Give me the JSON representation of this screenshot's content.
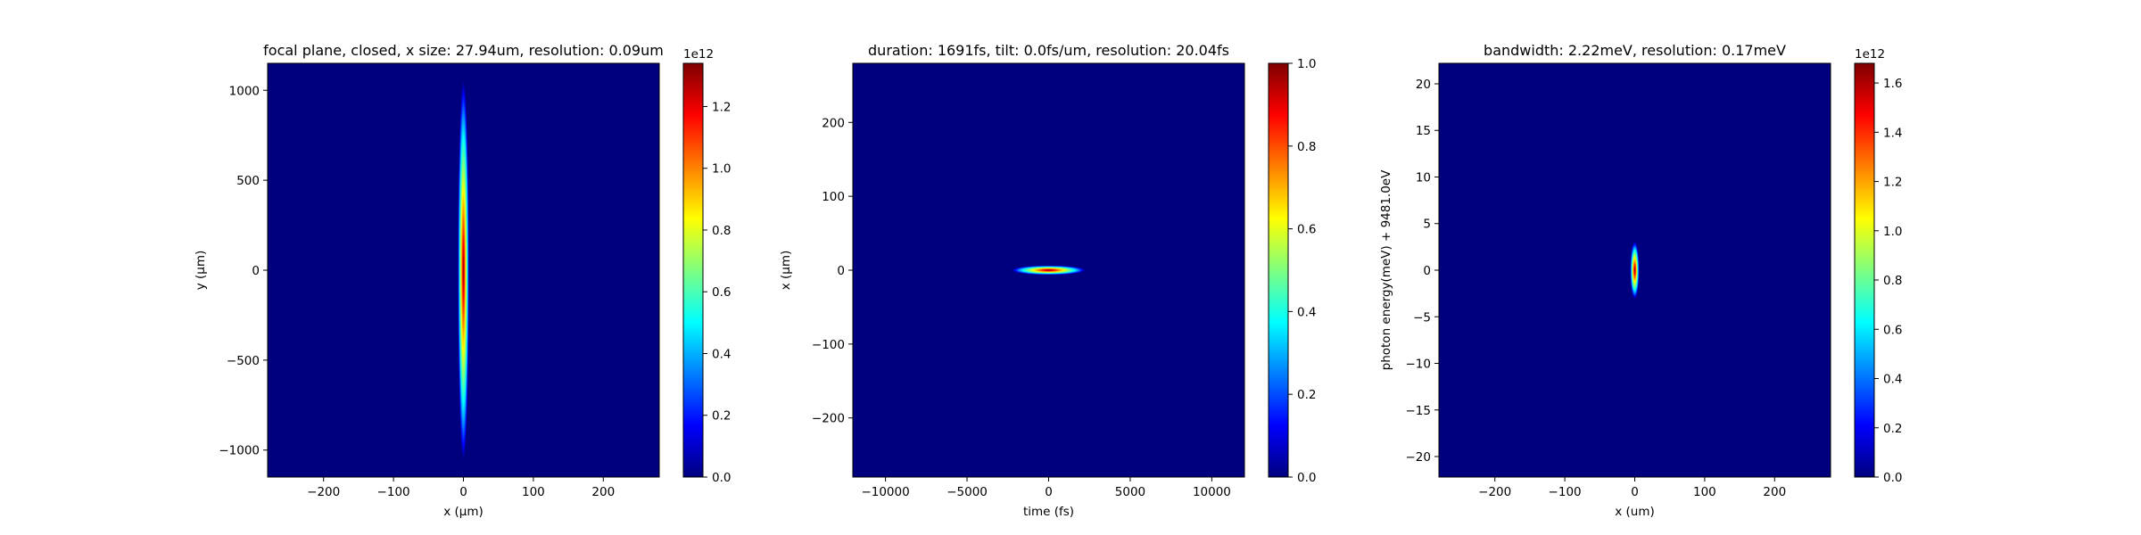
{
  "colormap": "jet",
  "colors": {
    "jet_stops": [
      "#00007f",
      "#0000ff",
      "#007fff",
      "#00ffff",
      "#7fff7f",
      "#ffff00",
      "#ff7f00",
      "#ff0000",
      "#7f0000"
    ],
    "background": "#00007f",
    "axes": "#000000"
  },
  "chart_data": [
    {
      "type": "heatmap",
      "title": "focal plane, closed, x size: 27.94um, resolution: 0.09um",
      "xlabel": "x (μm)",
      "ylabel": "y (μm)",
      "xlim": [
        -280,
        280
      ],
      "ylim": [
        -1150,
        1150
      ],
      "xticks": [
        -200,
        -100,
        0,
        100,
        200
      ],
      "yticks": [
        -1000,
        -500,
        0,
        500,
        1000
      ],
      "xtick_labels": [
        "−200",
        "−100",
        "0",
        "100",
        "200"
      ],
      "ytick_labels": [
        "−1000",
        "−500",
        "0",
        "500",
        "1000"
      ],
      "feature": {
        "shape": "gaussian",
        "center": [
          0,
          0
        ],
        "sigma": [
          2.5,
          330
        ],
        "peak": 1.0
      },
      "colorbar": {
        "vmin": 0,
        "vmax": 1.34,
        "ticks": [
          0.0,
          0.2,
          0.4,
          0.6,
          0.8,
          1.0,
          1.2
        ],
        "tick_labels": [
          "0.0",
          "0.2",
          "0.4",
          "0.6",
          "0.8",
          "1.0",
          "1.2"
        ],
        "offset_label": "1e12"
      }
    },
    {
      "type": "heatmap",
      "title": "duration: 1691fs, tilt: 0.0fs/um, resolution: 20.04fs",
      "xlabel": "time (fs)",
      "ylabel": "x (μm)",
      "xlim": [
        -12000,
        12000
      ],
      "ylim": [
        -280,
        280
      ],
      "xticks": [
        -10000,
        -5000,
        0,
        5000,
        10000
      ],
      "yticks": [
        -200,
        -100,
        0,
        100,
        200
      ],
      "xtick_labels": [
        "−10000",
        "−5000",
        "0",
        "5000",
        "10000"
      ],
      "ytick_labels": [
        "−200",
        "−100",
        "0",
        "100",
        "200"
      ],
      "feature": {
        "shape": "gaussian",
        "center": [
          0,
          0
        ],
        "sigma": [
          700,
          2
        ],
        "peak": 1.0
      },
      "colorbar": {
        "vmin": 0,
        "vmax": 1.0,
        "ticks": [
          0.0,
          0.2,
          0.4,
          0.6,
          0.8,
          1.0
        ],
        "tick_labels": [
          "0.0",
          "0.2",
          "0.4",
          "0.6",
          "0.8",
          "1.0"
        ],
        "offset_label": ""
      }
    },
    {
      "type": "heatmap",
      "title": "bandwidth: 2.22meV, resolution: 0.17meV",
      "xlabel": "x (um)",
      "ylabel": "photon energy(meV) + 9481.0eV",
      "xlim": [
        -280,
        280
      ],
      "ylim": [
        -22.2,
        22.2
      ],
      "xticks": [
        -200,
        -100,
        0,
        100,
        200
      ],
      "yticks": [
        -20,
        -15,
        -10,
        -5,
        0,
        5,
        10,
        15,
        20
      ],
      "xtick_labels": [
        "−200",
        "−100",
        "0",
        "100",
        "200"
      ],
      "ytick_labels": [
        "−20",
        "−15",
        "−10",
        "−5",
        "0",
        "5",
        "10",
        "15",
        "20"
      ],
      "feature": {
        "shape": "gaussian",
        "center": [
          0,
          0
        ],
        "sigma": [
          2,
          0.95
        ],
        "peak": 1.0
      },
      "colorbar": {
        "vmin": 0,
        "vmax": 1.68,
        "ticks": [
          0.0,
          0.2,
          0.4,
          0.6,
          0.8,
          1.0,
          1.2,
          1.4,
          1.6
        ],
        "tick_labels": [
          "0.0",
          "0.2",
          "0.4",
          "0.6",
          "0.8",
          "1.0",
          "1.2",
          "1.4",
          "1.6"
        ],
        "offset_label": "1e12"
      }
    }
  ]
}
